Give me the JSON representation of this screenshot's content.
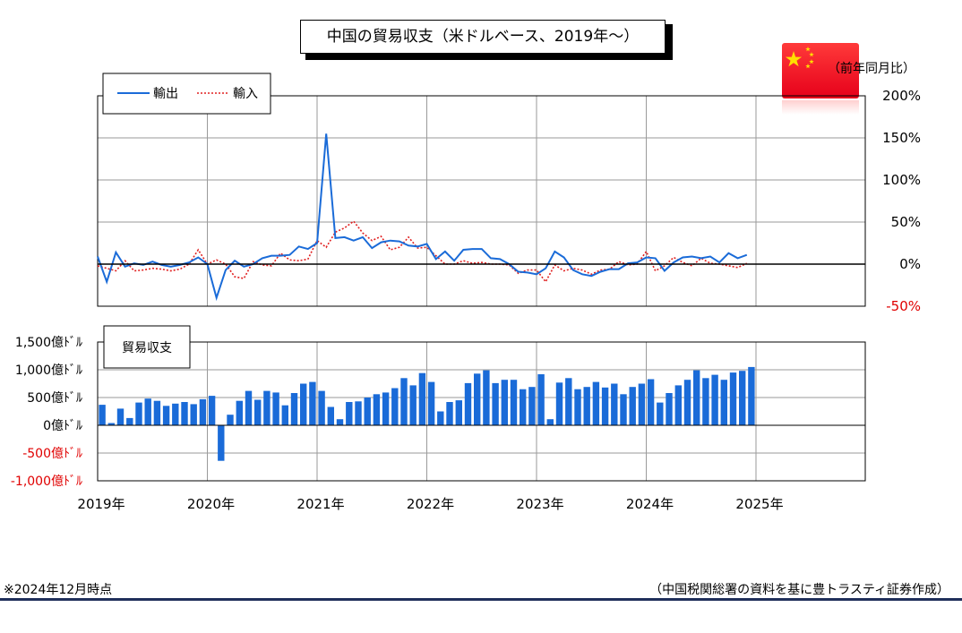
{
  "title": "中国の貿易収支（米ドルベース、2019年～）",
  "footnote": "※2024年12月時点",
  "source": "（中国税関総署の資料を基に豊トラスティ証券作成）",
  "colors": {
    "export": "#1a6bd8",
    "import": "#e02020",
    "bar": "#1a6bd8",
    "negative_label": "#e00000",
    "grid": "#999999"
  },
  "flag_icon": "china-flag-icon",
  "x_labels": [
    "2019年",
    "2020年",
    "2021年",
    "2022年",
    "2023年",
    "2024年",
    "2025年"
  ],
  "chart_data": [
    {
      "type": "line",
      "unit_label": "（前年同月比）",
      "y_ticks": [
        "200%",
        "150%",
        "100%",
        "50%",
        "0%",
        "-50%"
      ],
      "ylim": [
        -50,
        200
      ],
      "xlim": [
        "2019-01",
        "2025-12"
      ],
      "legend": [
        "輸出",
        "輸入"
      ],
      "legend_position": "top-left",
      "grid": true,
      "x": [
        "2019-01",
        "2019-02",
        "2019-03",
        "2019-04",
        "2019-05",
        "2019-06",
        "2019-07",
        "2019-08",
        "2019-09",
        "2019-10",
        "2019-11",
        "2019-12",
        "2020-01",
        "2020-02",
        "2020-03",
        "2020-04",
        "2020-05",
        "2020-06",
        "2020-07",
        "2020-08",
        "2020-09",
        "2020-10",
        "2020-11",
        "2020-12",
        "2021-01",
        "2021-02",
        "2021-03",
        "2021-04",
        "2021-05",
        "2021-06",
        "2021-07",
        "2021-08",
        "2021-09",
        "2021-10",
        "2021-11",
        "2021-12",
        "2022-01",
        "2022-02",
        "2022-03",
        "2022-04",
        "2022-05",
        "2022-06",
        "2022-07",
        "2022-08",
        "2022-09",
        "2022-10",
        "2022-11",
        "2022-12",
        "2023-01",
        "2023-02",
        "2023-03",
        "2023-04",
        "2023-05",
        "2023-06",
        "2023-07",
        "2023-08",
        "2023-09",
        "2023-10",
        "2023-11",
        "2023-12",
        "2024-01",
        "2024-02",
        "2024-03",
        "2024-04",
        "2024-05",
        "2024-06",
        "2024-07",
        "2024-08",
        "2024-09",
        "2024-10",
        "2024-11",
        "2024-12"
      ],
      "series": [
        {
          "name": "輸出",
          "style": "solid",
          "values": [
            9,
            -21,
            14,
            -3,
            1,
            -1,
            3,
            -1,
            -3,
            -1,
            2,
            8,
            0,
            -40,
            -7,
            4,
            -3,
            0,
            7,
            10,
            10,
            11,
            21,
            18,
            25,
            155,
            31,
            32,
            28,
            32,
            19,
            26,
            28,
            27,
            22,
            21,
            24,
            6,
            15,
            4,
            17,
            18,
            18,
            7,
            6,
            0,
            -9,
            -10,
            -12,
            -5,
            15,
            8,
            -7,
            -12,
            -14,
            -9,
            -6,
            -6,
            1,
            2,
            8,
            7,
            -8,
            2,
            8,
            9,
            7,
            9,
            2,
            13,
            7,
            11
          ]
        },
        {
          "name": "輸入",
          "style": "dotted",
          "values": [
            -2,
            -5,
            -8,
            4,
            -8,
            -7,
            -5,
            -6,
            -8,
            -6,
            0,
            17,
            0,
            5,
            0,
            -15,
            -17,
            3,
            -1,
            -2,
            13,
            5,
            4,
            6,
            28,
            20,
            38,
            43,
            51,
            37,
            28,
            33,
            17,
            20,
            32,
            19,
            20,
            10,
            0,
            0,
            4,
            1,
            2,
            0,
            0,
            -1,
            -11,
            -7,
            -7,
            -21,
            -1,
            -8,
            -5,
            -7,
            -12,
            -7,
            -6,
            3,
            -1,
            0,
            15,
            -8,
            -2,
            8,
            2,
            -2,
            7,
            1,
            0,
            -2,
            -4,
            1
          ]
        }
      ]
    },
    {
      "type": "bar",
      "name": "貿易収支",
      "unit": "億ﾄﾞﾙ",
      "y_ticks": [
        "1,500億ﾄﾞﾙ",
        "1,000億ﾄﾞﾙ",
        "500億ﾄﾞﾙ",
        "0億ﾄﾞﾙ",
        "-500億ﾄﾞﾙ",
        "-1,000億ﾄﾞﾙ"
      ],
      "ylim": [
        -1000,
        1500
      ],
      "xlim": [
        "2019-01",
        "2025-12"
      ],
      "grid": true,
      "x": [
        "2019-01",
        "2019-02",
        "2019-03",
        "2019-04",
        "2019-05",
        "2019-06",
        "2019-07",
        "2019-08",
        "2019-09",
        "2019-10",
        "2019-11",
        "2019-12",
        "2020-01",
        "2020-02",
        "2020-03",
        "2020-04",
        "2020-05",
        "2020-06",
        "2020-07",
        "2020-08",
        "2020-09",
        "2020-10",
        "2020-11",
        "2020-12",
        "2021-01",
        "2021-02",
        "2021-03",
        "2021-04",
        "2021-05",
        "2021-06",
        "2021-07",
        "2021-08",
        "2021-09",
        "2021-10",
        "2021-11",
        "2021-12",
        "2022-01",
        "2022-02",
        "2022-03",
        "2022-04",
        "2022-05",
        "2022-06",
        "2022-07",
        "2022-08",
        "2022-09",
        "2022-10",
        "2022-11",
        "2022-12",
        "2023-01",
        "2023-02",
        "2023-03",
        "2023-04",
        "2023-05",
        "2023-06",
        "2023-07",
        "2023-08",
        "2023-09",
        "2023-10",
        "2023-11",
        "2023-12",
        "2024-01",
        "2024-02",
        "2024-03",
        "2024-04",
        "2024-05",
        "2024-06",
        "2024-07",
        "2024-08",
        "2024-09",
        "2024-10",
        "2024-11",
        "2024-12"
      ],
      "values": [
        370,
        40,
        300,
        130,
        410,
        480,
        440,
        350,
        390,
        420,
        380,
        470,
        530,
        -640,
        190,
        440,
        620,
        460,
        620,
        590,
        360,
        580,
        750,
        780,
        620,
        330,
        110,
        420,
        430,
        500,
        560,
        590,
        670,
        850,
        720,
        940,
        780,
        250,
        420,
        450,
        760,
        930,
        990,
        760,
        820,
        820,
        650,
        690,
        920,
        110,
        770,
        850,
        650,
        690,
        780,
        680,
        750,
        560,
        690,
        750,
        830,
        410,
        580,
        720,
        820,
        990,
        850,
        910,
        820,
        950,
        980,
        1050
      ]
    }
  ]
}
